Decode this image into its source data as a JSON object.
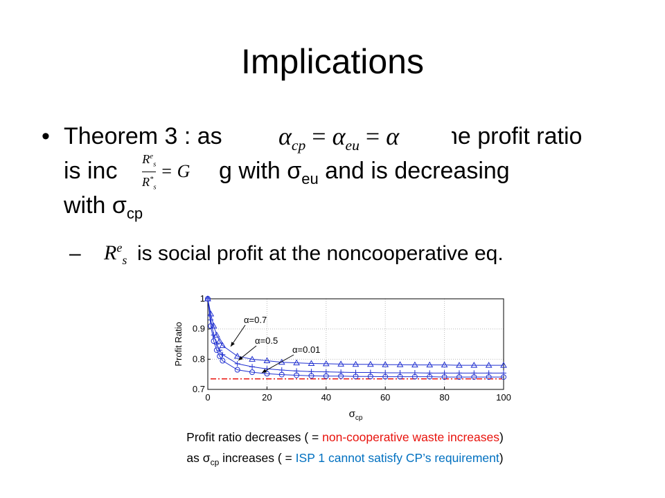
{
  "slide": {
    "title": "Implications",
    "bullet": {
      "line1": [
        "Theorem 3 : as",
        "he profit ratio"
      ],
      "line2": [
        "is inc",
        "g with σ",
        "eu",
        " and is decreasing"
      ],
      "line3": [
        "with σ",
        "cp"
      ]
    },
    "math": {
      "alpha": [
        "α",
        "cp",
        "=",
        "α",
        "eu",
        "=",
        "α"
      ],
      "ratio": {
        "num": [
          "R",
          "s",
          "e"
        ],
        "den": [
          "R",
          "s",
          "*"
        ],
        "rhs": "= G"
      },
      "social": [
        "R",
        "s",
        "e"
      ]
    },
    "sub_bullet": {
      "dash": "–",
      "text": "is social profit at the noncooperative eq."
    },
    "caption": [
      [
        {
          "text": "Profit ratio decreases ( = ",
          "color": "#000000"
        },
        {
          "text": "non-cooperative waste increases",
          "color": "#e8120c"
        },
        {
          "text": ")",
          "color": "#000000"
        }
      ],
      [
        {
          "text": "as σ",
          "color": "#000000"
        },
        {
          "text": "cp",
          "color": "#000000",
          "sub": true
        },
        {
          "text": " increases ( = ",
          "color": "#000000"
        },
        {
          "text": "ISP 1 cannot satisfy CP’s requirement",
          "color": "#0070c0"
        },
        {
          "text": ")",
          "color": "#000000"
        }
      ]
    ]
  },
  "chart_data": {
    "type": "line",
    "xlabel": {
      "symbol": "σ",
      "sub": "cp"
    },
    "ylabel": "Profit Ratio",
    "x": [
      0,
      1,
      2,
      3,
      4,
      5,
      10,
      15,
      20,
      25,
      30,
      35,
      40,
      45,
      50,
      55,
      60,
      65,
      70,
      75,
      80,
      85,
      90,
      95,
      100
    ],
    "series": [
      {
        "name": "α=0.7",
        "color": "#1f2fd0",
        "marker": "triangle",
        "values": [
          1.0,
          0.95,
          0.91,
          0.88,
          0.86,
          0.845,
          0.81,
          0.8,
          0.795,
          0.79,
          0.788,
          0.786,
          0.785,
          0.784,
          0.783,
          0.783,
          0.782,
          0.782,
          0.781,
          0.781,
          0.781,
          0.78,
          0.78,
          0.78,
          0.78
        ]
      },
      {
        "name": "α=0.5",
        "color": "#1f2fd0",
        "marker": "plus",
        "values": [
          1.0,
          0.93,
          0.88,
          0.85,
          0.83,
          0.815,
          0.785,
          0.775,
          0.768,
          0.764,
          0.761,
          0.759,
          0.758,
          0.757,
          0.756,
          0.756,
          0.755,
          0.755,
          0.755,
          0.754,
          0.754,
          0.754,
          0.754,
          0.754,
          0.754
        ]
      },
      {
        "name": "α=0.01",
        "color": "#1f2fd0",
        "marker": "circle",
        "values": [
          1.0,
          0.91,
          0.86,
          0.83,
          0.81,
          0.795,
          0.765,
          0.757,
          0.752,
          0.749,
          0.747,
          0.745,
          0.744,
          0.744,
          0.743,
          0.743,
          0.742,
          0.742,
          0.742,
          0.742,
          0.741,
          0.741,
          0.741,
          0.741,
          0.741
        ]
      }
    ],
    "baseline": 0.735,
    "baseline_color": "#e8120c",
    "xlim": [
      0,
      100
    ],
    "xticks": [
      0,
      20,
      40,
      60,
      80,
      100
    ],
    "ylim": [
      0.7,
      1.0
    ],
    "yticks": [
      0.7,
      0.8,
      0.9,
      1
    ],
    "grid": true
  }
}
